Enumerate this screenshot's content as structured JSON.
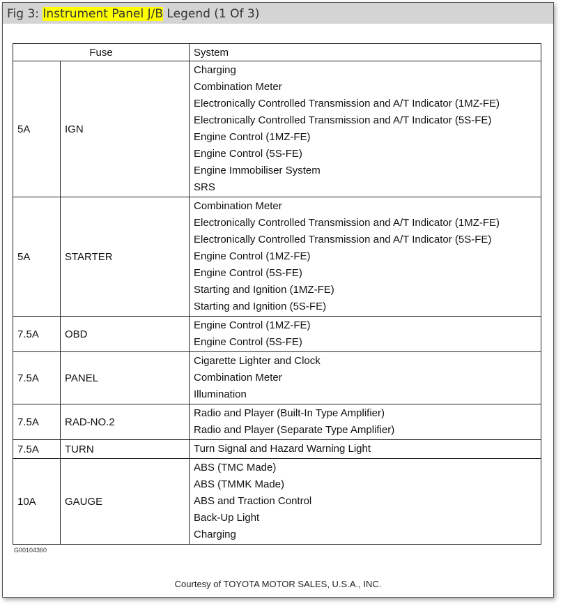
{
  "title": {
    "prefix": "Fig 3: ",
    "highlight": "Instrument Panel J/B",
    "suffix": " Legend (1 Of 3)"
  },
  "table": {
    "headers": {
      "fuse": "Fuse",
      "system": "System"
    },
    "rows": [
      {
        "amp": "5A",
        "name": "IGN",
        "systems": [
          "Charging",
          "Combination Meter",
          "Electronically Controlled Transmission and A/T Indicator (1MZ-FE)",
          "Electronically Controlled Transmission and A/T Indicator (5S-FE)",
          "Engine Control (1MZ-FE)",
          "Engine Control (5S-FE)",
          "Engine Immobiliser System",
          "SRS"
        ]
      },
      {
        "amp": "5A",
        "name": "STARTER",
        "systems": [
          "Combination Meter",
          "Electronically Controlled Transmission and A/T Indicator (1MZ-FE)",
          "Electronically Controlled Transmission and A/T Indicator (5S-FE)",
          "Engine Control (1MZ-FE)",
          "Engine Control (5S-FE)",
          "Starting and Ignition (1MZ-FE)",
          "Starting and Ignition (5S-FE)"
        ]
      },
      {
        "amp": "7.5A",
        "name": "OBD",
        "systems": [
          "Engine Control (1MZ-FE)",
          "Engine Control (5S-FE)"
        ]
      },
      {
        "amp": "7.5A",
        "name": "PANEL",
        "systems": [
          "Cigarette Lighter and Clock",
          "Combination Meter",
          "Illumination"
        ]
      },
      {
        "amp": "7.5A",
        "name": "RAD-NO.2",
        "systems": [
          "Radio and Player (Built-In Type Amplifier)",
          "Radio and Player (Separate Type Amplifier)"
        ]
      },
      {
        "amp": "7.5A",
        "name": "TURN",
        "systems": [
          "Turn Signal and Hazard Warning Light"
        ]
      },
      {
        "amp": "10A",
        "name": "GAUGE",
        "systems": [
          "ABS (TMC Made)",
          "ABS (TMMK Made)",
          "ABS and Traction Control",
          "Back-Up Light",
          "Charging"
        ]
      }
    ]
  },
  "figure_code": "G00104360",
  "courtesy": "Courtesy of TOYOTA MOTOR SALES, U.S.A., INC."
}
